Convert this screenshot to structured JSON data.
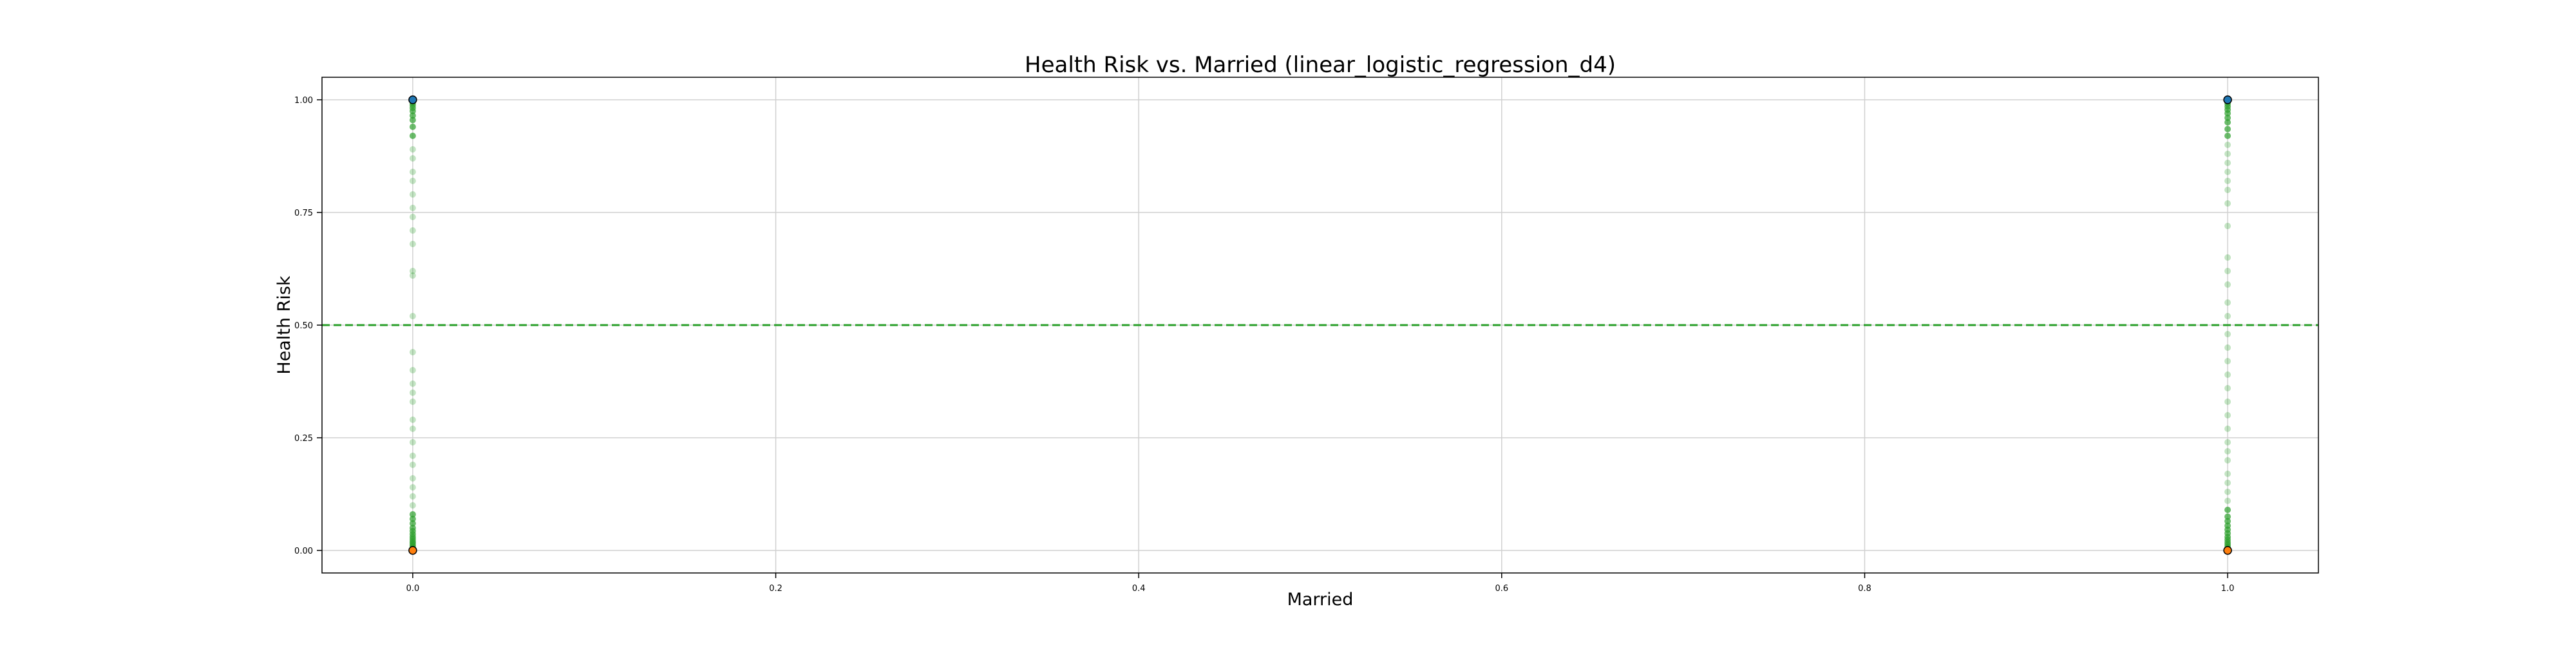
{
  "chart_data": {
    "type": "scatter",
    "title": "Health Risk vs. Married (linear_logistic_regression_d4)",
    "xlabel": "Married",
    "ylabel": "Health Risk",
    "xlim": [
      -0.05,
      1.05
    ],
    "ylim": [
      -0.05,
      1.05
    ],
    "x_ticks": [
      "0.0",
      "0.2",
      "0.4",
      "0.6",
      "0.8",
      "1.0"
    ],
    "y_ticks": [
      "0.00",
      "0.25",
      "0.50",
      "0.75",
      "1.00"
    ],
    "grid": true,
    "threshold_line": {
      "y": 0.5,
      "color": "#2ca02c",
      "style": "dashed"
    },
    "colors": {
      "prediction_points": "#2ca02c",
      "actual_high": "#1f77b4",
      "actual_low": "#ff7f0e",
      "grid": "#d0d0d0"
    },
    "prediction_points": [
      {
        "x": 0,
        "y": 0.0
      },
      {
        "x": 0,
        "y": 0.004
      },
      {
        "x": 0,
        "y": 0.008
      },
      {
        "x": 0,
        "y": 0.012
      },
      {
        "x": 0,
        "y": 0.016
      },
      {
        "x": 0,
        "y": 0.02
      },
      {
        "x": 0,
        "y": 0.025
      },
      {
        "x": 0,
        "y": 0.03
      },
      {
        "x": 0,
        "y": 0.036
      },
      {
        "x": 0,
        "y": 0.043
      },
      {
        "x": 0,
        "y": 0.05
      },
      {
        "x": 0,
        "y": 0.06
      },
      {
        "x": 0,
        "y": 0.07
      },
      {
        "x": 0,
        "y": 0.08
      },
      {
        "x": 0,
        "y": 0.1
      },
      {
        "x": 0,
        "y": 0.12
      },
      {
        "x": 0,
        "y": 0.14
      },
      {
        "x": 0,
        "y": 0.16
      },
      {
        "x": 0,
        "y": 0.19
      },
      {
        "x": 0,
        "y": 0.21
      },
      {
        "x": 0,
        "y": 0.24
      },
      {
        "x": 0,
        "y": 0.27
      },
      {
        "x": 0,
        "y": 0.29
      },
      {
        "x": 0,
        "y": 0.33
      },
      {
        "x": 0,
        "y": 0.35
      },
      {
        "x": 0,
        "y": 0.37
      },
      {
        "x": 0,
        "y": 0.4
      },
      {
        "x": 0,
        "y": 0.44
      },
      {
        "x": 0,
        "y": 0.52
      },
      {
        "x": 0,
        "y": 0.61
      },
      {
        "x": 0,
        "y": 0.62
      },
      {
        "x": 0,
        "y": 0.68
      },
      {
        "x": 0,
        "y": 0.71
      },
      {
        "x": 0,
        "y": 0.74
      },
      {
        "x": 0,
        "y": 0.76
      },
      {
        "x": 0,
        "y": 0.79
      },
      {
        "x": 0,
        "y": 0.82
      },
      {
        "x": 0,
        "y": 0.84
      },
      {
        "x": 0,
        "y": 0.87
      },
      {
        "x": 0,
        "y": 0.89
      },
      {
        "x": 0,
        "y": 0.92
      },
      {
        "x": 0,
        "y": 0.94
      },
      {
        "x": 0,
        "y": 0.955
      },
      {
        "x": 0,
        "y": 0.965
      },
      {
        "x": 0,
        "y": 0.975
      },
      {
        "x": 0,
        "y": 0.982
      },
      {
        "x": 0,
        "y": 0.988
      },
      {
        "x": 0,
        "y": 0.993
      },
      {
        "x": 0,
        "y": 0.997
      },
      {
        "x": 0,
        "y": 1.0
      },
      {
        "x": 1,
        "y": 0.0
      },
      {
        "x": 1,
        "y": 0.004
      },
      {
        "x": 1,
        "y": 0.008
      },
      {
        "x": 1,
        "y": 0.013
      },
      {
        "x": 1,
        "y": 0.018
      },
      {
        "x": 1,
        "y": 0.024
      },
      {
        "x": 1,
        "y": 0.03
      },
      {
        "x": 1,
        "y": 0.038
      },
      {
        "x": 1,
        "y": 0.046
      },
      {
        "x": 1,
        "y": 0.055
      },
      {
        "x": 1,
        "y": 0.065
      },
      {
        "x": 1,
        "y": 0.075
      },
      {
        "x": 1,
        "y": 0.09
      },
      {
        "x": 1,
        "y": 0.11
      },
      {
        "x": 1,
        "y": 0.13
      },
      {
        "x": 1,
        "y": 0.15
      },
      {
        "x": 1,
        "y": 0.17
      },
      {
        "x": 1,
        "y": 0.2
      },
      {
        "x": 1,
        "y": 0.22
      },
      {
        "x": 1,
        "y": 0.24
      },
      {
        "x": 1,
        "y": 0.27
      },
      {
        "x": 1,
        "y": 0.3
      },
      {
        "x": 1,
        "y": 0.33
      },
      {
        "x": 1,
        "y": 0.36
      },
      {
        "x": 1,
        "y": 0.39
      },
      {
        "x": 1,
        "y": 0.42
      },
      {
        "x": 1,
        "y": 0.45
      },
      {
        "x": 1,
        "y": 0.48
      },
      {
        "x": 1,
        "y": 0.52
      },
      {
        "x": 1,
        "y": 0.55
      },
      {
        "x": 1,
        "y": 0.59
      },
      {
        "x": 1,
        "y": 0.62
      },
      {
        "x": 1,
        "y": 0.65
      },
      {
        "x": 1,
        "y": 0.72
      },
      {
        "x": 1,
        "y": 0.77
      },
      {
        "x": 1,
        "y": 0.8
      },
      {
        "x": 1,
        "y": 0.82
      },
      {
        "x": 1,
        "y": 0.84
      },
      {
        "x": 1,
        "y": 0.86
      },
      {
        "x": 1,
        "y": 0.88
      },
      {
        "x": 1,
        "y": 0.9
      },
      {
        "x": 1,
        "y": 0.92
      },
      {
        "x": 1,
        "y": 0.935
      },
      {
        "x": 1,
        "y": 0.95
      },
      {
        "x": 1,
        "y": 0.96
      },
      {
        "x": 1,
        "y": 0.97
      },
      {
        "x": 1,
        "y": 0.978
      },
      {
        "x": 1,
        "y": 0.985
      },
      {
        "x": 1,
        "y": 0.991
      },
      {
        "x": 1,
        "y": 0.996
      },
      {
        "x": 1,
        "y": 1.0
      }
    ],
    "actual_points": [
      {
        "x": 0,
        "y": 1,
        "class": "high"
      },
      {
        "x": 0,
        "y": 0,
        "class": "low"
      },
      {
        "x": 1,
        "y": 1,
        "class": "high"
      },
      {
        "x": 1,
        "y": 0,
        "class": "low"
      }
    ]
  }
}
